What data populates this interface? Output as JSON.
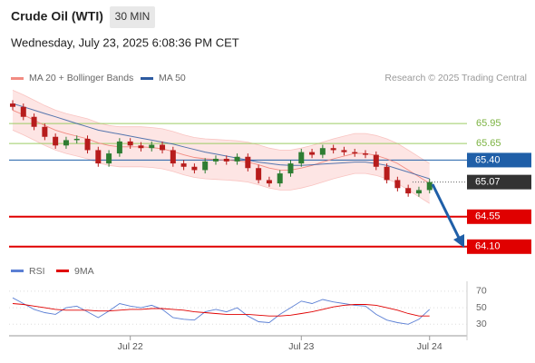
{
  "header": {
    "title": "Crude Oil (WTI)",
    "timeframe": "30 MIN",
    "datetime": "Wednesday, July 23, 2025 6:08:36 PM CET"
  },
  "chart_data": {
    "type": "candlestick",
    "credit": "Research © 2025 Trading Central",
    "xlim": [
      -0.17,
      42.5
    ],
    "xticks": [
      {
        "value": 11,
        "label": "Jul 22"
      },
      {
        "value": 27,
        "label": "Jul 23"
      },
      {
        "value": 39,
        "label": "Jul 24"
      }
    ],
    "ylim": [
      63.92,
      66.51
    ],
    "up_color": "#2e7d32",
    "down_color": "#b71c1c",
    "open": [
      66.25,
      66.2,
      66.05,
      65.9,
      65.75,
      65.62,
      65.7,
      65.72,
      65.55,
      65.35,
      65.5,
      65.68,
      65.62,
      65.58,
      65.63,
      65.55,
      65.35,
      65.3,
      65.25,
      65.38,
      65.42,
      65.38,
      65.45,
      65.28,
      65.1,
      65.05,
      65.2,
      65.35,
      65.52,
      65.48,
      65.58,
      65.55,
      65.52,
      65.5,
      65.48,
      65.3,
      65.1,
      64.98,
      64.9,
      64.95
    ],
    "high": [
      66.3,
      66.25,
      66.1,
      65.95,
      65.8,
      65.75,
      65.77,
      65.77,
      65.6,
      65.55,
      65.73,
      65.73,
      65.67,
      65.68,
      65.68,
      65.6,
      65.4,
      65.35,
      65.43,
      65.47,
      65.47,
      65.5,
      65.5,
      65.33,
      65.15,
      65.25,
      65.4,
      65.57,
      65.57,
      65.63,
      65.63,
      65.6,
      65.57,
      65.55,
      65.53,
      65.35,
      65.15,
      65.03,
      65.0,
      65.12
    ],
    "low": [
      66.15,
      66.0,
      65.85,
      65.7,
      65.57,
      65.57,
      65.65,
      65.5,
      65.3,
      65.3,
      65.45,
      65.57,
      65.53,
      65.53,
      65.5,
      65.3,
      65.25,
      65.2,
      65.2,
      65.33,
      65.33,
      65.33,
      65.23,
      65.05,
      65.0,
      65.0,
      65.15,
      65.3,
      65.43,
      65.43,
      65.5,
      65.47,
      65.45,
      65.43,
      65.25,
      65.05,
      64.93,
      64.85,
      64.85,
      64.9
    ],
    "close": [
      66.2,
      66.05,
      65.9,
      65.75,
      65.62,
      65.7,
      65.72,
      65.55,
      65.35,
      65.5,
      65.68,
      65.62,
      65.58,
      65.63,
      65.55,
      65.35,
      65.3,
      65.25,
      65.38,
      65.42,
      65.38,
      65.45,
      65.28,
      65.1,
      65.05,
      65.2,
      65.35,
      65.52,
      65.48,
      65.58,
      65.55,
      65.52,
      65.5,
      65.48,
      65.3,
      65.1,
      64.98,
      64.9,
      64.95,
      65.07
    ],
    "series": [
      {
        "name": "MA 20 + Bollinger Bands",
        "color": "#f28b82",
        "values": [
          66.15,
          66.08,
          66.0,
          65.92,
          65.85,
          65.8,
          65.76,
          65.72,
          65.66,
          65.62,
          65.6,
          65.6,
          65.6,
          65.59,
          65.57,
          65.53,
          65.48,
          65.44,
          65.42,
          65.41,
          65.4,
          65.39,
          65.37,
          65.33,
          65.28,
          65.25,
          65.25,
          65.28,
          65.32,
          65.37,
          65.42,
          65.46,
          65.5,
          65.5,
          65.47,
          65.42,
          65.35,
          65.25,
          65.15,
          65.05
        ],
        "upper": [
          66.45,
          66.38,
          66.3,
          66.22,
          66.15,
          66.1,
          66.06,
          66.02,
          65.96,
          65.92,
          65.9,
          65.9,
          65.9,
          65.89,
          65.87,
          65.83,
          65.78,
          65.74,
          65.72,
          65.71,
          65.7,
          65.69,
          65.67,
          65.63,
          65.58,
          65.55,
          65.55,
          65.58,
          65.62,
          65.67,
          65.72,
          65.76,
          65.8,
          65.8,
          65.77,
          65.72,
          65.65,
          65.55,
          65.45,
          65.35
        ],
        "lower": [
          65.85,
          65.78,
          65.7,
          65.62,
          65.55,
          65.5,
          65.46,
          65.42,
          65.36,
          65.32,
          65.3,
          65.3,
          65.3,
          65.29,
          65.27,
          65.23,
          65.18,
          65.14,
          65.12,
          65.11,
          65.1,
          65.09,
          65.07,
          65.03,
          64.98,
          64.95,
          64.95,
          64.98,
          65.02,
          65.07,
          65.12,
          65.16,
          65.2,
          65.2,
          65.17,
          65.12,
          65.05,
          64.95,
          64.85,
          64.75
        ]
      },
      {
        "name": "MA 50",
        "color": "#2c5aa0",
        "values": [
          66.25,
          66.2,
          66.15,
          66.1,
          66.05,
          66.0,
          65.95,
          65.9,
          65.85,
          65.82,
          65.79,
          65.76,
          65.73,
          65.7,
          65.67,
          65.64,
          65.6,
          65.56,
          65.52,
          65.49,
          65.46,
          65.43,
          65.4,
          65.37,
          65.35,
          65.33,
          65.32,
          65.32,
          65.33,
          65.34,
          65.35,
          65.36,
          65.37,
          65.37,
          65.35,
          65.32,
          65.27,
          65.22,
          65.17,
          65.12
        ]
      }
    ],
    "levels": [
      {
        "value": 65.95,
        "color": "#9ccc65",
        "style": "plain"
      },
      {
        "value": 65.65,
        "color": "#9ccc65",
        "style": "plain"
      },
      {
        "value": 65.4,
        "label": "65.40",
        "color": "#1f5fa8",
        "style": "box"
      },
      {
        "value": 65.07,
        "color": "#333333",
        "style": "current"
      },
      {
        "value": 64.55,
        "color": "#e00000",
        "style": "box"
      },
      {
        "value": 64.1,
        "label": "64.10",
        "color": "#e00000",
        "style": "box"
      }
    ],
    "rsi": {
      "ylim": [
        16,
        82
      ],
      "yticks": [
        70,
        50,
        30
      ],
      "series": [
        {
          "name": "RSI",
          "color": "#5b7fd4",
          "values": [
            62,
            55,
            48,
            44,
            42,
            50,
            52,
            45,
            38,
            46,
            55,
            52,
            50,
            53,
            48,
            38,
            36,
            35,
            45,
            48,
            45,
            50,
            40,
            33,
            32,
            42,
            50,
            58,
            55,
            60,
            57,
            55,
            53,
            52,
            42,
            35,
            32,
            30,
            36,
            48
          ]
        },
        {
          "name": "9MA",
          "color": "#e00000",
          "values": [
            55,
            54,
            52,
            50,
            48,
            47,
            47,
            47,
            46,
            46,
            47,
            48,
            48,
            49,
            49,
            48,
            47,
            45,
            44,
            43,
            42,
            42,
            42,
            41,
            40,
            40,
            41,
            43,
            45,
            48,
            51,
            53,
            54,
            54,
            53,
            50,
            47,
            43,
            40,
            40
          ]
        }
      ]
    }
  }
}
